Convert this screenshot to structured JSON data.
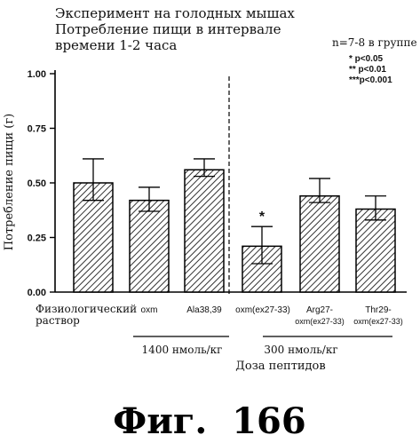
{
  "header": {
    "line1": "Эксперимент на голодных мышах",
    "line2": "Потребление пищи в интервале",
    "line3": "времени 1-2 часа"
  },
  "group_note": "n=7-8 в группе",
  "significance_legend": [
    "*   p<0.05",
    "** p<0.01",
    "***p<0.001"
  ],
  "chart_data": {
    "type": "bar",
    "ylabel": "Потребление пищи (г)",
    "xlabel": "Доза пептидов",
    "ylim": [
      0,
      1.0
    ],
    "yticks": [
      "0.00",
      "0.25",
      "0.50",
      "0.75",
      "1.00"
    ],
    "grid": false,
    "categories": [
      [
        "Физиологический",
        "раствор"
      ],
      [
        "oxm"
      ],
      [
        "Ala38,39"
      ],
      [
        "oxm(ex27-33)"
      ],
      [
        "Arg27-",
        "oxm(ex27-33)"
      ],
      [
        "Thr29-",
        "oxm(ex27-33)"
      ]
    ],
    "values": [
      0.5,
      0.42,
      0.56,
      0.21,
      0.44,
      0.38
    ],
    "error_upper": [
      0.61,
      0.48,
      0.61,
      0.3,
      0.52,
      0.44
    ],
    "error_lower": [
      0.42,
      0.37,
      0.53,
      0.13,
      0.41,
      0.33
    ],
    "significance_marks": [
      "",
      "",
      "",
      "*",
      "",
      ""
    ],
    "dose_groups": [
      {
        "label": "1400 нмоль/кг",
        "categories": [
          1,
          2
        ]
      },
      {
        "label": "300 нмоль/кг",
        "categories": [
          3,
          4,
          5
        ]
      }
    ]
  },
  "figure_caption": "Фиг.  166"
}
